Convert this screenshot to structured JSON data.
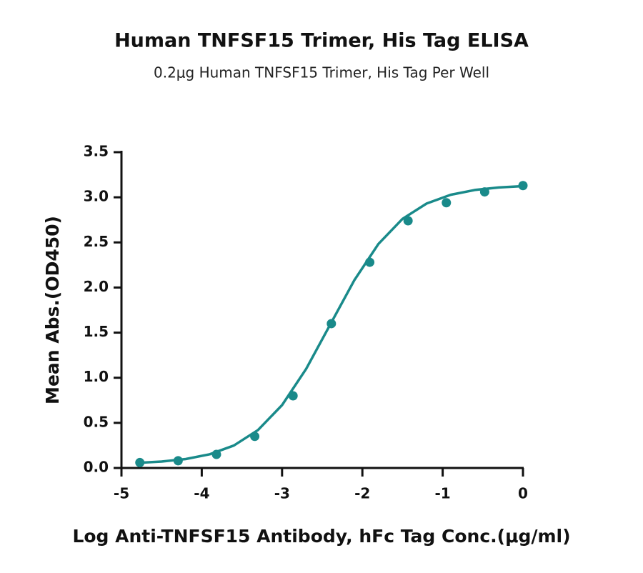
{
  "chart_data": {
    "type": "scatter",
    "title": "Human TNFSF15 Trimer, His Tag ELISA",
    "subtitle": "0.2μg Human TNFSF15 Trimer, His Tag Per Well",
    "xlabel": "Log Anti-TNFSF15 Antibody, hFc Tag Conc.(μg/ml)",
    "ylabel": "Mean Abs.(OD450)",
    "color": "#198a8a",
    "x": [
      -4.771,
      -4.294,
      -3.817,
      -3.34,
      -2.863,
      -2.386,
      -1.908,
      -1.431,
      -0.954,
      -0.477,
      0
    ],
    "values": [
      0.06,
      0.08,
      0.15,
      0.35,
      0.8,
      1.6,
      2.28,
      2.74,
      2.94,
      3.06,
      3.13
    ],
    "fit": {
      "x": [
        -4.8,
        -4.5,
        -4.2,
        -3.9,
        -3.6,
        -3.3,
        -3.0,
        -2.7,
        -2.4,
        -2.1,
        -1.8,
        -1.5,
        -1.2,
        -0.9,
        -0.6,
        -0.3,
        0
      ],
      "y": [
        0.056,
        0.071,
        0.099,
        0.152,
        0.249,
        0.42,
        0.697,
        1.098,
        1.59,
        2.081,
        2.483,
        2.761,
        2.931,
        3.028,
        3.081,
        3.109,
        3.124
      ]
    },
    "xlim": [
      -5,
      0
    ],
    "ylim": [
      0,
      3.5
    ],
    "xticks": [
      -5,
      -4,
      -3,
      -2,
      -1,
      0
    ],
    "yticks": [
      {
        "value": 0,
        "label": "0.0"
      },
      {
        "value": 0.5,
        "label": "0.5"
      },
      {
        "value": 1,
        "label": "1.0"
      },
      {
        "value": 1.5,
        "label": "1.5"
      },
      {
        "value": 2,
        "label": "2.0"
      },
      {
        "value": 2.5,
        "label": "2.5"
      },
      {
        "value": 3,
        "label": "3.0"
      },
      {
        "value": 3.5,
        "label": "3.5"
      }
    ]
  }
}
